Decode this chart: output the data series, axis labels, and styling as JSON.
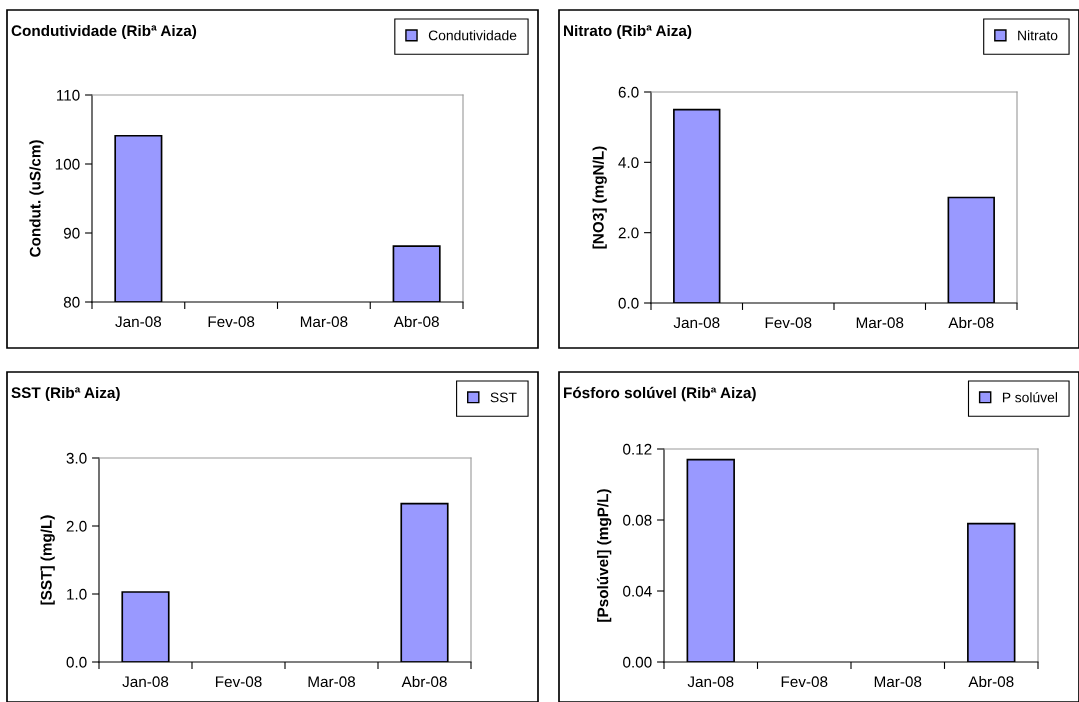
{
  "chart_data": [
    {
      "type": "bar",
      "title": "Condutividade (Ribª Aiza)",
      "ylabel": "Condut. (uS/cm)",
      "categories": [
        "Jan-08",
        "Fev-08",
        "Mar-08",
        "Abr-08"
      ],
      "series": [
        {
          "name": "Condutividade",
          "color": "#9999ff",
          "values": [
            104.1,
            null,
            null,
            88.1
          ]
        }
      ],
      "ylim": [
        80,
        110
      ],
      "yticks": [
        80,
        90,
        100,
        110
      ],
      "legend": "top right",
      "grid": false
    },
    {
      "type": "bar",
      "title": "Nitrato (Ribª Aiza)",
      "ylabel": "[NO3] (mgN/L)",
      "categories": [
        "Jan-08",
        "Fev-08",
        "Mar-08",
        "Abr-08"
      ],
      "series": [
        {
          "name": "Nitrato",
          "color": "#9999ff",
          "values": [
            5.5,
            null,
            null,
            3.0
          ]
        }
      ],
      "ylim": [
        0,
        6
      ],
      "yticks": [
        {
          "value": 0,
          "label": "0.0"
        },
        {
          "value": 2,
          "label": "2.0"
        },
        {
          "value": 4,
          "label": "4.0"
        },
        {
          "value": 6,
          "label": "6.0"
        }
      ],
      "legend": "top right",
      "grid": false
    },
    {
      "type": "bar",
      "title": "SST (Ribª Aiza)",
      "ylabel": "[SST] (mg/L)",
      "categories": [
        "Jan-08",
        "Fev-08",
        "Mar-08",
        "Abr-08"
      ],
      "series": [
        {
          "name": "SST",
          "color": "#9999ff",
          "values": [
            1.03,
            null,
            null,
            2.33
          ]
        }
      ],
      "ylim": [
        0,
        3
      ],
      "yticks": [
        {
          "value": 0,
          "label": "0.0"
        },
        {
          "value": 1,
          "label": "1.0"
        },
        {
          "value": 2,
          "label": "2.0"
        },
        {
          "value": 3,
          "label": "3.0"
        }
      ],
      "legend": "top right",
      "grid": false
    },
    {
      "type": "bar",
      "title": "Fósforo solúvel (Ribª Aiza)",
      "ylabel": "[Psolúvel] (mgP/L)",
      "categories": [
        "Jan-08",
        "Fev-08",
        "Mar-08",
        "Abr-08"
      ],
      "series": [
        {
          "name": "P solúvel",
          "color": "#9999ff",
          "values": [
            0.114,
            null,
            null,
            0.078
          ]
        }
      ],
      "ylim": [
        0,
        0.12
      ],
      "yticks": [
        {
          "value": 0,
          "label": "0.00"
        },
        {
          "value": 0.04,
          "label": "0.04"
        },
        {
          "value": 0.08,
          "label": "0.08"
        },
        {
          "value": 0.12,
          "label": "0.12"
        }
      ],
      "legend": "top right",
      "grid": false
    }
  ]
}
